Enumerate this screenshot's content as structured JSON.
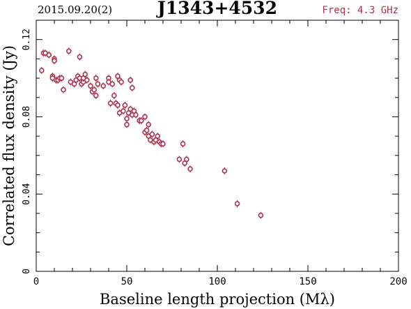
{
  "header": {
    "date_label": "2015.09.20(2)",
    "source_label": "J1343+4532",
    "freq_label": "Freq: 4.3 GHz"
  },
  "colors": {
    "marker": "#b0304c",
    "axis": "#000000",
    "background": "#ffffff"
  },
  "chart_data": {
    "type": "scatter",
    "title": "J1343+4532",
    "xlabel": "Baseline length projection (Mλ)",
    "ylabel": "Correlated flux density (Jy)",
    "xlim": [
      0,
      200
    ],
    "ylim": [
      0,
      0.13
    ],
    "x_ticks": [
      0,
      50,
      100,
      150,
      200
    ],
    "x_tick_labels": [
      "0",
      "50",
      "100",
      "150",
      "200"
    ],
    "y_ticks": [
      0,
      0.04,
      0.08,
      0.12
    ],
    "y_tick_labels": [
      "0",
      "0.04",
      "0.08",
      "0.12"
    ],
    "grid": false,
    "legend": "none",
    "series": [
      {
        "points": [
          [
            3,
            0.104
          ],
          [
            4,
            0.113
          ],
          [
            5,
            0.113
          ],
          [
            7,
            0.112
          ],
          [
            9,
            0.101
          ],
          [
            9,
            0.1
          ],
          [
            10,
            0.11
          ],
          [
            10,
            0.109
          ],
          [
            11,
            0.099
          ],
          [
            12,
            0.099
          ],
          [
            13,
            0.1
          ],
          [
            14,
            0.1
          ],
          [
            15,
            0.094
          ],
          [
            18,
            0.114
          ],
          [
            19,
            0.098
          ],
          [
            21,
            0.097
          ],
          [
            22,
            0.099
          ],
          [
            23,
            0.101
          ],
          [
            24,
            0.111
          ],
          [
            24,
            0.1
          ],
          [
            25,
            0.097
          ],
          [
            26,
            0.098
          ],
          [
            26,
            0.1
          ],
          [
            27,
            0.102
          ],
          [
            28,
            0.099
          ],
          [
            30,
            0.096
          ],
          [
            31,
            0.093
          ],
          [
            32,
            0.094
          ],
          [
            33,
            0.1
          ],
          [
            33,
            0.091
          ],
          [
            34,
            0.097
          ],
          [
            37,
            0.096
          ],
          [
            40,
            0.1
          ],
          [
            40,
            0.098
          ],
          [
            41,
            0.087
          ],
          [
            42,
            0.097
          ],
          [
            43,
            0.091
          ],
          [
            44,
            0.087
          ],
          [
            45,
            0.101
          ],
          [
            45,
            0.086
          ],
          [
            46,
            0.099
          ],
          [
            46,
            0.082
          ],
          [
            47,
            0.098
          ],
          [
            48,
            0.083
          ],
          [
            49,
            0.086
          ],
          [
            50,
            0.079
          ],
          [
            50,
            0.076
          ],
          [
            51,
            0.082
          ],
          [
            52,
            0.084
          ],
          [
            52,
            0.099
          ],
          [
            53,
            0.081
          ],
          [
            53,
            0.095
          ],
          [
            54,
            0.083
          ],
          [
            55,
            0.081
          ],
          [
            57,
            0.078
          ],
          [
            58,
            0.078
          ],
          [
            60,
            0.08
          ],
          [
            60,
            0.072
          ],
          [
            61,
            0.073
          ],
          [
            62,
            0.076
          ],
          [
            62,
            0.07
          ],
          [
            63,
            0.068
          ],
          [
            64,
            0.071
          ],
          [
            65,
            0.067
          ],
          [
            66,
            0.068
          ],
          [
            67,
            0.07
          ],
          [
            68,
            0.067
          ],
          [
            69,
            0.066
          ],
          [
            70,
            0.066
          ],
          [
            79,
            0.058
          ],
          [
            81,
            0.066
          ],
          [
            82,
            0.056
          ],
          [
            83,
            0.058
          ],
          [
            85,
            0.053
          ],
          [
            104,
            0.052
          ],
          [
            111,
            0.035
          ],
          [
            124,
            0.029
          ]
        ]
      }
    ]
  }
}
